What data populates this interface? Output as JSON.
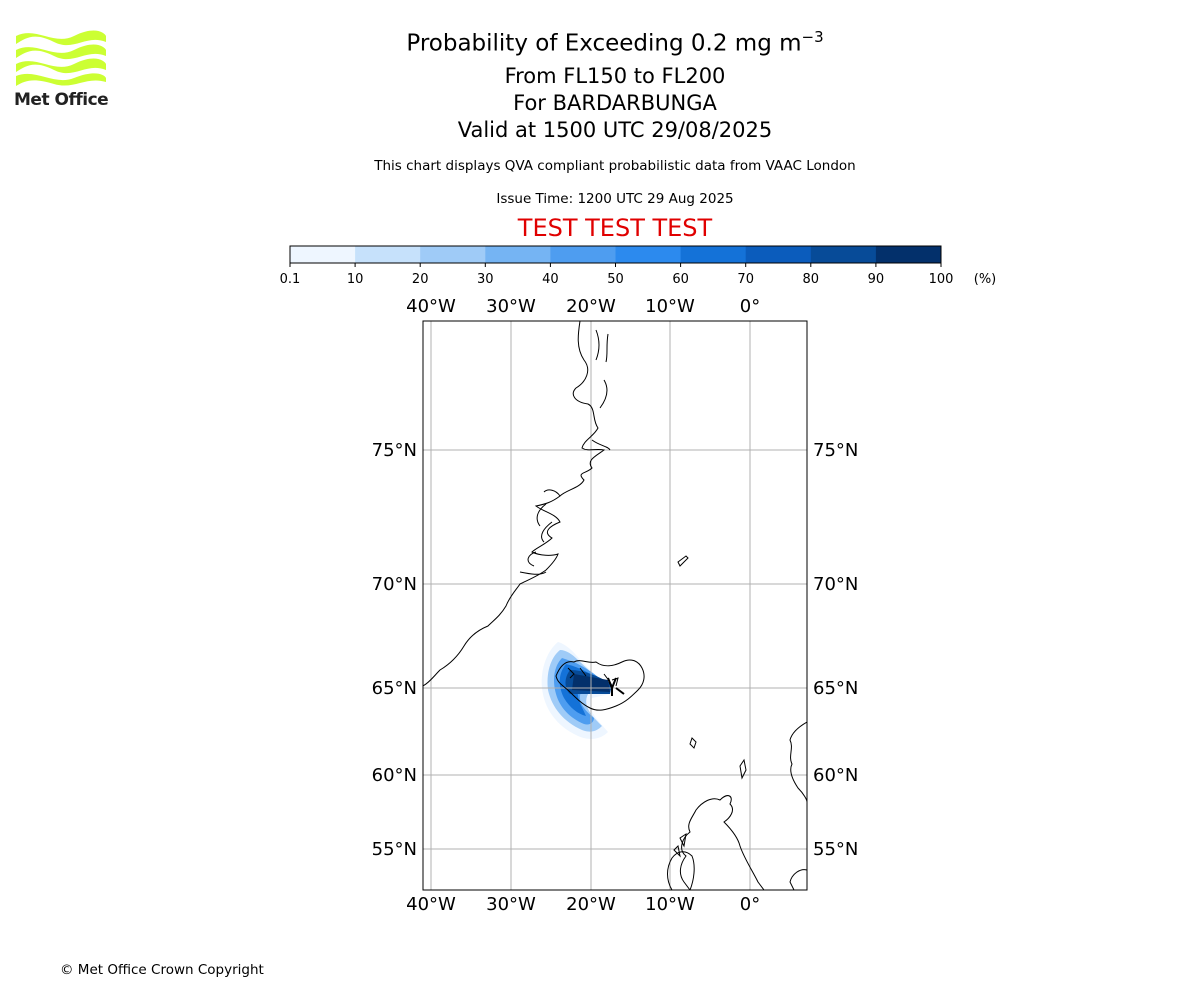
{
  "logo": {
    "text": "Met Office",
    "color": "#ccff33"
  },
  "title": {
    "main": "Probability of Exceeding 0.2 mg m",
    "exponent": "−3",
    "flight_levels": "From FL150 to FL200",
    "volcano": "For BARDARBUNGA",
    "valid": "Valid at 1500 UTC 29/08/2025"
  },
  "note": "This chart displays QVA compliant probabilistic data from VAAC London",
  "issue_time": "Issue Time: 1200 UTC 29 Aug 2025",
  "test_banner": "TEST TEST TEST",
  "colorbar": {
    "ticks": [
      "0.1",
      "10",
      "20",
      "30",
      "40",
      "50",
      "60",
      "70",
      "80",
      "90",
      "100"
    ],
    "unit": "(%)",
    "colors": [
      "#eef6ff",
      "#c6e1fb",
      "#9fcbf7",
      "#75b4f3",
      "#4e9df0",
      "#2c8aee",
      "#1472d8",
      "#0b5cbc",
      "#074b98",
      "#03306b"
    ]
  },
  "map": {
    "lon_labels": [
      "40°W",
      "30°W",
      "20°W",
      "10°W",
      "0°"
    ],
    "lat_labels": [
      "75°N",
      "70°N",
      "65°N",
      "60°N",
      "55°N"
    ],
    "grid_color": "#b0b0b0"
  },
  "copyright": "© Met Office Crown Copyright"
}
